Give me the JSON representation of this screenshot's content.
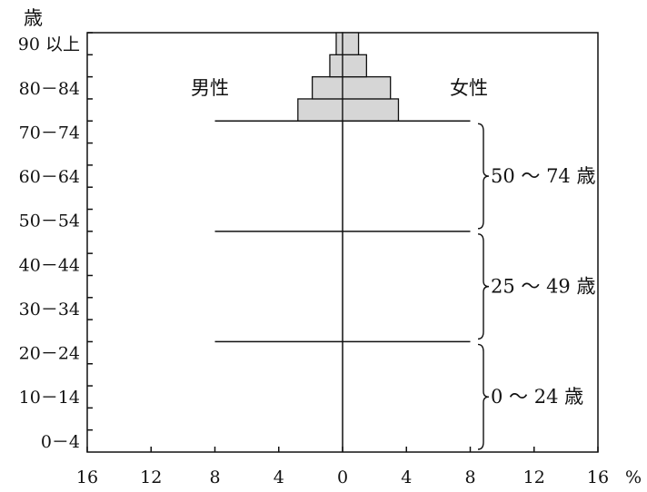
{
  "chart_data": {
    "type": "bar",
    "subtype": "population-pyramid",
    "y_unit_label": "歳",
    "x_unit_label": "%",
    "xlim": [
      -16,
      16
    ],
    "x_ticks": [
      "16",
      "12",
      "8",
      "4",
      "0",
      "4",
      "8",
      "12",
      "16"
    ],
    "x_tick_values": [
      -16,
      -12,
      -8,
      -4,
      0,
      4,
      8,
      12,
      16
    ],
    "age_labels": [
      "0－4",
      "10－14",
      "20－24",
      "30－34",
      "40－44",
      "50－54",
      "60－64",
      "70－74",
      "80－84",
      "90 以上"
    ],
    "age_label_bins": [
      0,
      2,
      4,
      6,
      8,
      10,
      12,
      14,
      16,
      18
    ],
    "age_bins": [
      "0-4",
      "5-9",
      "10-14",
      "15-19",
      "20-24",
      "25-29",
      "30-34",
      "35-39",
      "40-44",
      "45-49",
      "50-54",
      "55-59",
      "60-64",
      "65-69",
      "70-74",
      "75-79",
      "80-84",
      "85-89",
      "90+"
    ],
    "series": [
      {
        "name": "男性",
        "side": "left",
        "values": [
          null,
          null,
          null,
          null,
          null,
          null,
          null,
          null,
          null,
          null,
          null,
          null,
          null,
          null,
          null,
          2.8,
          1.9,
          0.8,
          0.4
        ]
      },
      {
        "name": "女性",
        "side": "right",
        "values": [
          null,
          null,
          null,
          null,
          null,
          null,
          null,
          null,
          null,
          null,
          null,
          null,
          null,
          null,
          null,
          3.5,
          3.0,
          1.5,
          1.0
        ]
      }
    ],
    "group_lines_x": [
      -8,
      8
    ],
    "group_lines_at_bins": [
      5,
      10,
      15
    ],
    "groups": [
      {
        "label": "50 ～ 74 歳",
        "from_bin": 10,
        "to_bin": 14
      },
      {
        "label": "25 ～ 49 歳",
        "from_bin": 5,
        "to_bin": 9
      },
      {
        "label": "0 ～ 24 歳",
        "from_bin": 0,
        "to_bin": 4
      }
    ],
    "bar_color": "#d6d6d6",
    "line_color": "#111111"
  }
}
